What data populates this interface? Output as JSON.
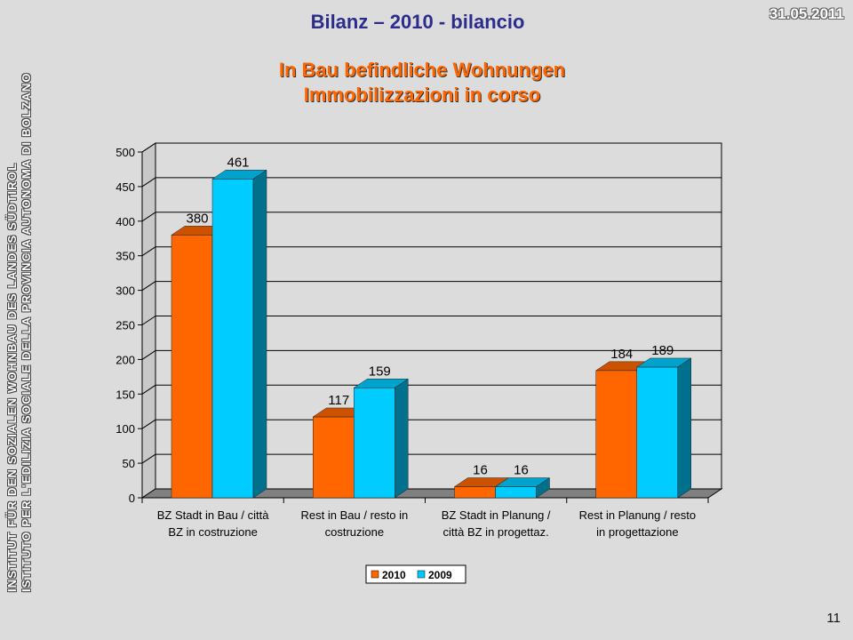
{
  "header": {
    "title": "Bilanz – 2010 - bilancio",
    "date": "31.05.2011",
    "subtitle_de": "In Bau befindliche Wohnungen",
    "subtitle_it": "Immobilizzazioni in corso"
  },
  "sidebar": {
    "line1": "INSTITUT FÜR DEN SOZIALEN WOHNBAU DES LANDES SÜDTIROL",
    "line2": "ISTITUTO PER L'EDILIZIA SOCIALE DELLA PROVINCIA AUTONOMA DI BOLZANO"
  },
  "page_number": "11",
  "colors": {
    "series_2010": "#ff6600",
    "series_2009": "#00ccff",
    "background": "#dcdcdc"
  },
  "chart_data": {
    "type": "bar",
    "categories": [
      [
        "BZ Stadt in Bau / città",
        "BZ in costruzione"
      ],
      [
        "Rest in Bau / resto in",
        "costruzione"
      ],
      [
        "BZ Stadt in Planung /",
        "città BZ in progettaz."
      ],
      [
        "Rest in Planung / resto",
        "in progettazione"
      ]
    ],
    "series": [
      {
        "name": "2010",
        "values": [
          380,
          117,
          16,
          184
        ]
      },
      {
        "name": "2009",
        "values": [
          461,
          159,
          16,
          189
        ]
      }
    ],
    "ylim": [
      0,
      500
    ],
    "yticks": [
      0,
      50,
      100,
      150,
      200,
      250,
      300,
      350,
      400,
      450,
      500
    ],
    "grid": true,
    "legend": "bottom",
    "style": "3d"
  }
}
